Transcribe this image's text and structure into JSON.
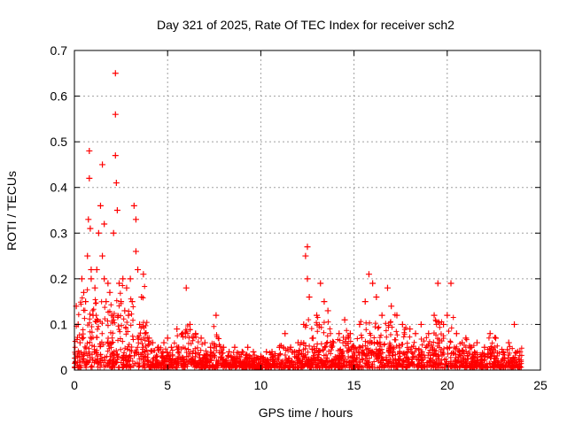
{
  "chart_data": {
    "type": "scatter",
    "title": "Day 321 of 2025, Rate Of TEC Index for receiver sch2",
    "xlabel": "GPS time / hours",
    "ylabel": "ROTI / TECUs",
    "xlim": [
      0,
      25
    ],
    "ylim": [
      0,
      0.7
    ],
    "x_ticks": [
      0,
      5,
      10,
      15,
      20,
      25
    ],
    "y_ticks": [
      0,
      0.1,
      0.2,
      0.3,
      0.4,
      0.5,
      0.6,
      0.7
    ],
    "grid": true,
    "marker": "+",
    "color": "#ff0000",
    "series": [
      {
        "name": "ROTI",
        "x": [
          0.1,
          0.2,
          0.3,
          0.4,
          0.5,
          0.6,
          0.7,
          0.75,
          0.8,
          0.8,
          0.85,
          0.9,
          0.9,
          1.0,
          1.1,
          1.2,
          1.3,
          1.4,
          1.5,
          1.5,
          1.6,
          1.6,
          1.7,
          1.8,
          1.9,
          2.0,
          2.1,
          2.2,
          2.2,
          2.2,
          2.25,
          2.3,
          2.4,
          2.5,
          2.6,
          2.7,
          2.8,
          2.9,
          3.0,
          3.1,
          3.2,
          3.3,
          3.3,
          3.4,
          3.5,
          3.6,
          3.7,
          3.8,
          4.0,
          4.2,
          4.5,
          4.8,
          5.0,
          5.2,
          5.5,
          5.8,
          6.0,
          6.2,
          6.5,
          6.8,
          7.0,
          7.3,
          7.6,
          8.0,
          8.3,
          8.6,
          9.0,
          9.3,
          9.6,
          10.0,
          10.3,
          10.6,
          11.0,
          11.3,
          11.6,
          12.0,
          12.3,
          12.4,
          12.5,
          12.5,
          12.6,
          12.8,
          13.0,
          13.2,
          13.4,
          13.6,
          13.9,
          14.2,
          14.5,
          14.8,
          15.0,
          15.3,
          15.6,
          15.8,
          16.0,
          16.2,
          16.5,
          16.8,
          17.0,
          17.3,
          17.6,
          18.0,
          18.3,
          18.6,
          19.0,
          19.3,
          19.5,
          19.8,
          20.0,
          20.2,
          20.5,
          20.8,
          21.0,
          21.3,
          21.6,
          22.0,
          22.3,
          22.6,
          23.0,
          23.3,
          23.6,
          23.9
        ],
        "y": [
          0.14,
          0.1,
          0.06,
          0.2,
          0.17,
          0.15,
          0.25,
          0.33,
          0.48,
          0.42,
          0.31,
          0.22,
          0.2,
          0.12,
          0.18,
          0.22,
          0.3,
          0.36,
          0.45,
          0.25,
          0.32,
          0.2,
          0.15,
          0.19,
          0.17,
          0.12,
          0.3,
          0.65,
          0.56,
          0.47,
          0.41,
          0.35,
          0.19,
          0.15,
          0.2,
          0.13,
          0.18,
          0.12,
          0.2,
          0.15,
          0.36,
          0.33,
          0.26,
          0.22,
          0.1,
          0.16,
          0.21,
          0.08,
          0.07,
          0.06,
          0.05,
          0.06,
          0.07,
          0.05,
          0.09,
          0.08,
          0.18,
          0.1,
          0.08,
          0.07,
          0.06,
          0.05,
          0.12,
          0.05,
          0.04,
          0.05,
          0.04,
          0.05,
          0.04,
          0.03,
          0.04,
          0.04,
          0.05,
          0.08,
          0.05,
          0.06,
          0.1,
          0.25,
          0.27,
          0.2,
          0.16,
          0.07,
          0.12,
          0.19,
          0.15,
          0.13,
          0.06,
          0.08,
          0.11,
          0.08,
          0.05,
          0.1,
          0.15,
          0.21,
          0.19,
          0.16,
          0.12,
          0.18,
          0.14,
          0.12,
          0.1,
          0.09,
          0.08,
          0.1,
          0.08,
          0.12,
          0.19,
          0.1,
          0.12,
          0.19,
          0.08,
          0.06,
          0.07,
          0.05,
          0.06,
          0.05,
          0.08,
          0.07,
          0.04,
          0.06,
          0.1,
          0.04
        ]
      }
    ]
  }
}
